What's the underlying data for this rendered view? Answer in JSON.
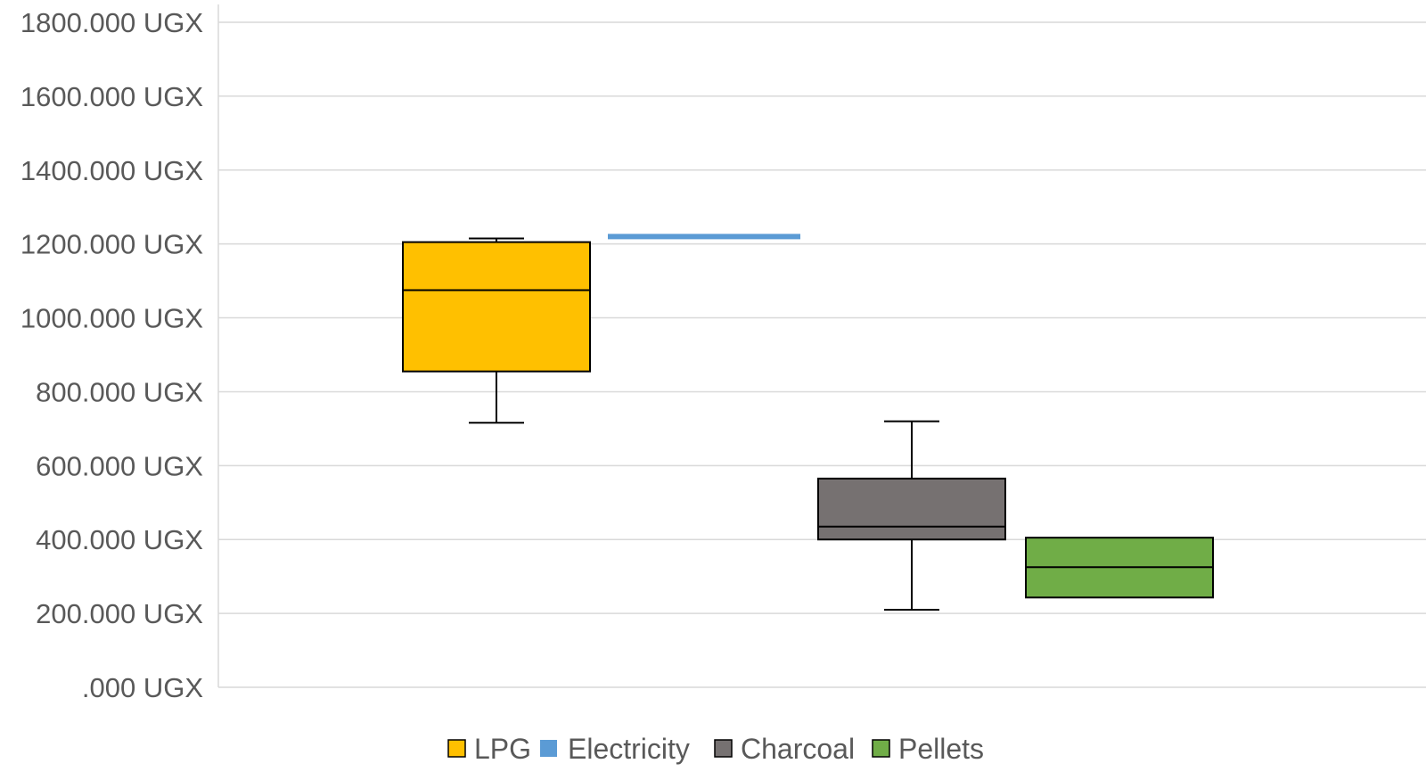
{
  "chart_data": {
    "type": "box",
    "title": "",
    "xlabel": "",
    "ylabel": "",
    "ylim": [
      0,
      1800
    ],
    "yticks": [
      0,
      200,
      400,
      600,
      800,
      1000,
      1200,
      1400,
      1600,
      1800
    ],
    "ytick_labels": [
      ".000 UGX",
      "200.000 UGX",
      "400.000 UGX",
      "600.000 UGX",
      "800.000 UGX",
      "1000.000 UGX",
      "1200.000 UGX",
      "1400.000 UGX",
      "1600.000 UGX",
      "1800.000 UGX"
    ],
    "grid": true,
    "legend_position": "bottom",
    "series": [
      {
        "name": "LPG",
        "color": "#FFC000",
        "min": 716,
        "q1": 855,
        "median": 1075,
        "q3": 1205,
        "max": 1215
      },
      {
        "name": "Electricity",
        "color": "#5B9BD5",
        "min": 1220,
        "q1": 1220,
        "median": 1220,
        "q3": 1220,
        "max": 1220
      },
      {
        "name": "Charcoal",
        "color": "#767171",
        "min": 210,
        "q1": 400,
        "median": 435,
        "q3": 565,
        "max": 720
      },
      {
        "name": "Pellets",
        "color": "#70AD47",
        "min": 243,
        "q1": 243,
        "median": 325,
        "q3": 405,
        "max": 405
      }
    ]
  }
}
